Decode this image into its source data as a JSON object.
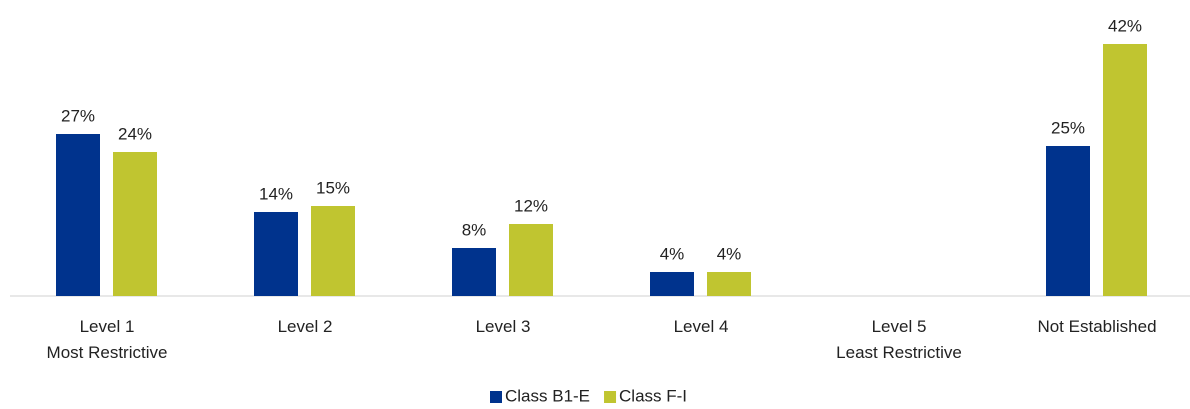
{
  "chart_data": {
    "type": "bar",
    "categories": [
      "Level 1\nMost Restrictive",
      "Level 2",
      "Level 3",
      "Level 4",
      "Level 5\nLeast Restrictive",
      "Not Established"
    ],
    "series": [
      {
        "name": "Class B1-E",
        "color": "#00338d",
        "values": [
          27,
          14,
          8,
          4,
          null,
          25
        ],
        "value_labels": [
          "27%",
          "14%",
          "8%",
          "4%",
          null,
          "25%"
        ]
      },
      {
        "name": "Class F-I",
        "color": "#c0c530",
        "values": [
          24,
          15,
          12,
          4,
          null,
          42
        ],
        "value_labels": [
          "24%",
          "15%",
          "12%",
          "4%",
          null,
          "42%"
        ]
      }
    ],
    "legend": "bottom"
  }
}
